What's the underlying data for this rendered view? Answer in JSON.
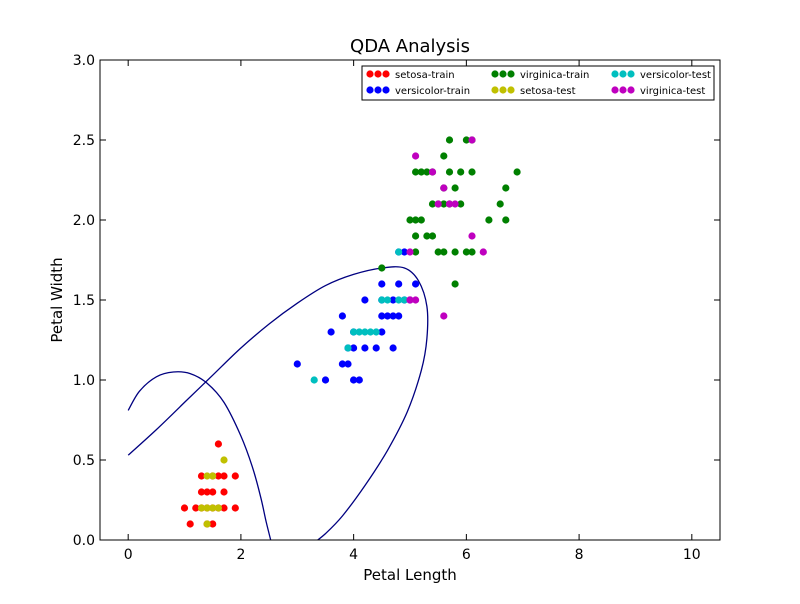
{
  "chart_data": {
    "type": "scatter",
    "title": "QDA Analysis",
    "xlabel": "Petal Length",
    "ylabel": "Petal Width",
    "xlim": [
      -0.5,
      10.5
    ],
    "ylim": [
      0.0,
      3.0
    ],
    "x_ticks": [
      0,
      2,
      4,
      6,
      8,
      10
    ],
    "y_ticks": [
      0.0,
      0.5,
      1.0,
      1.5,
      2.0,
      2.5,
      3.0
    ],
    "x_tick_labels": [
      "0",
      "2",
      "4",
      "6",
      "8",
      "10"
    ],
    "y_tick_labels": [
      "0.0",
      "0.5",
      "1.0",
      "1.5",
      "2.0",
      "2.5",
      "3.0"
    ],
    "grid": false,
    "legend_position": "top-right",
    "series": [
      {
        "name": "setosa-train",
        "color": "#ff0000",
        "points": [
          [
            1.1,
            0.1
          ],
          [
            1.5,
            0.1
          ],
          [
            1.4,
            0.2
          ],
          [
            1.3,
            0.2
          ],
          [
            1.5,
            0.2
          ],
          [
            1.7,
            0.2
          ],
          [
            1.0,
            0.2
          ],
          [
            1.2,
            0.2
          ],
          [
            1.6,
            0.2
          ],
          [
            1.9,
            0.2
          ],
          [
            1.4,
            0.3
          ],
          [
            1.3,
            0.3
          ],
          [
            1.5,
            0.3
          ],
          [
            1.6,
            0.4
          ],
          [
            1.3,
            0.4
          ],
          [
            1.7,
            0.4
          ],
          [
            1.9,
            0.4
          ],
          [
            1.4,
            0.1
          ],
          [
            1.6,
            0.6
          ],
          [
            1.5,
            0.4
          ],
          [
            1.7,
            0.3
          ]
        ]
      },
      {
        "name": "versicolor-train",
        "color": "#0000ff",
        "points": [
          [
            3.0,
            1.1
          ],
          [
            3.5,
            1.0
          ],
          [
            3.8,
            1.1
          ],
          [
            3.9,
            1.1
          ],
          [
            4.0,
            1.0
          ],
          [
            4.1,
            1.0
          ],
          [
            3.6,
            1.3
          ],
          [
            3.9,
            1.2
          ],
          [
            4.0,
            1.2
          ],
          [
            4.2,
            1.2
          ],
          [
            4.4,
            1.2
          ],
          [
            4.7,
            1.2
          ],
          [
            3.8,
            1.4
          ],
          [
            4.0,
            1.3
          ],
          [
            4.5,
            1.3
          ],
          [
            4.6,
            1.4
          ],
          [
            4.7,
            1.4
          ],
          [
            4.8,
            1.4
          ],
          [
            4.2,
            1.5
          ],
          [
            4.5,
            1.5
          ],
          [
            4.9,
            1.5
          ],
          [
            5.0,
            1.5
          ],
          [
            4.5,
            1.6
          ],
          [
            4.8,
            1.6
          ],
          [
            5.1,
            1.6
          ],
          [
            4.8,
            1.8
          ],
          [
            4.9,
            1.8
          ],
          [
            4.7,
            1.5
          ],
          [
            4.5,
            1.4
          ]
        ]
      },
      {
        "name": "virginica-train",
        "color": "#008000",
        "points": [
          [
            5.1,
            1.9
          ],
          [
            5.1,
            2.0
          ],
          [
            5.3,
            1.9
          ],
          [
            5.0,
            2.0
          ],
          [
            5.2,
            2.0
          ],
          [
            5.4,
            2.1
          ],
          [
            5.5,
            2.1
          ],
          [
            5.6,
            2.2
          ],
          [
            5.7,
            2.3
          ],
          [
            5.6,
            2.4
          ],
          [
            5.7,
            2.5
          ],
          [
            5.8,
            2.2
          ],
          [
            5.6,
            2.1
          ],
          [
            5.1,
            1.8
          ],
          [
            5.5,
            1.8
          ],
          [
            5.7,
            2.1
          ],
          [
            5.9,
            2.3
          ],
          [
            6.1,
            2.3
          ],
          [
            6.0,
            2.5
          ],
          [
            6.1,
            2.5
          ],
          [
            6.4,
            2.0
          ],
          [
            6.6,
            2.1
          ],
          [
            6.7,
            2.2
          ],
          [
            6.9,
            2.3
          ],
          [
            6.7,
            2.0
          ],
          [
            6.1,
            1.8
          ],
          [
            5.8,
            1.8
          ],
          [
            5.9,
            2.1
          ],
          [
            6.0,
            1.8
          ],
          [
            5.6,
            1.8
          ],
          [
            5.8,
            1.6
          ],
          [
            5.2,
            2.3
          ],
          [
            5.4,
            2.3
          ],
          [
            5.1,
            2.3
          ],
          [
            4.5,
            1.7
          ],
          [
            5.4,
            1.9
          ],
          [
            5.3,
            2.3
          ]
        ]
      },
      {
        "name": "setosa-test",
        "color": "#c0c000",
        "points": [
          [
            1.3,
            0.2
          ],
          [
            1.4,
            0.2
          ],
          [
            1.5,
            0.2
          ],
          [
            1.6,
            0.2
          ],
          [
            1.4,
            0.4
          ],
          [
            1.5,
            0.4
          ],
          [
            1.7,
            0.5
          ],
          [
            1.4,
            0.1
          ]
        ]
      },
      {
        "name": "versicolor-test",
        "color": "#00bfbf",
        "points": [
          [
            3.3,
            1.0
          ],
          [
            3.9,
            1.2
          ],
          [
            4.0,
            1.3
          ],
          [
            4.1,
            1.3
          ],
          [
            4.2,
            1.3
          ],
          [
            4.3,
            1.3
          ],
          [
            4.4,
            1.3
          ],
          [
            4.5,
            1.5
          ],
          [
            4.6,
            1.5
          ],
          [
            4.9,
            1.5
          ],
          [
            4.8,
            1.8
          ],
          [
            4.8,
            1.5
          ]
        ]
      },
      {
        "name": "virginica-test",
        "color": "#bf00bf",
        "points": [
          [
            5.1,
            2.4
          ],
          [
            5.6,
            2.2
          ],
          [
            5.6,
            1.4
          ],
          [
            5.8,
            2.1
          ],
          [
            5.5,
            2.1
          ],
          [
            6.1,
            2.5
          ],
          [
            6.3,
            1.8
          ],
          [
            5.1,
            1.5
          ],
          [
            6.1,
            1.9
          ],
          [
            5.0,
            1.5
          ],
          [
            5.4,
            2.3
          ],
          [
            5.0,
            1.8
          ],
          [
            5.7,
            2.1
          ],
          [
            5.0,
            1.5
          ]
        ]
      }
    ],
    "boundaries": [
      {
        "color": "#000080",
        "points": [
          [
            0.0,
            0.81
          ],
          [
            0.2,
            0.93
          ],
          [
            0.5,
            1.02
          ],
          [
            0.8,
            1.05
          ],
          [
            1.1,
            1.04
          ],
          [
            1.4,
            0.98
          ],
          [
            1.7,
            0.86
          ],
          [
            2.0,
            0.65
          ],
          [
            2.2,
            0.46
          ],
          [
            2.35,
            0.27
          ],
          [
            2.45,
            0.11
          ],
          [
            2.55,
            -0.03
          ]
        ]
      },
      {
        "color": "#000080",
        "points": [
          [
            0.0,
            0.53
          ],
          [
            0.5,
            0.69
          ],
          [
            1.0,
            0.86
          ],
          [
            1.5,
            1.03
          ],
          [
            2.0,
            1.2
          ],
          [
            2.5,
            1.35
          ],
          [
            3.0,
            1.48
          ],
          [
            3.5,
            1.59
          ],
          [
            4.0,
            1.66
          ],
          [
            4.5,
            1.7
          ],
          [
            4.9,
            1.7
          ],
          [
            5.15,
            1.62
          ],
          [
            5.3,
            1.46
          ],
          [
            5.3,
            1.26
          ],
          [
            5.2,
            1.06
          ],
          [
            4.95,
            0.8
          ],
          [
            4.6,
            0.56
          ],
          [
            4.2,
            0.34
          ],
          [
            3.8,
            0.15
          ],
          [
            3.5,
            0.04
          ],
          [
            3.25,
            -0.03
          ]
        ]
      }
    ]
  }
}
